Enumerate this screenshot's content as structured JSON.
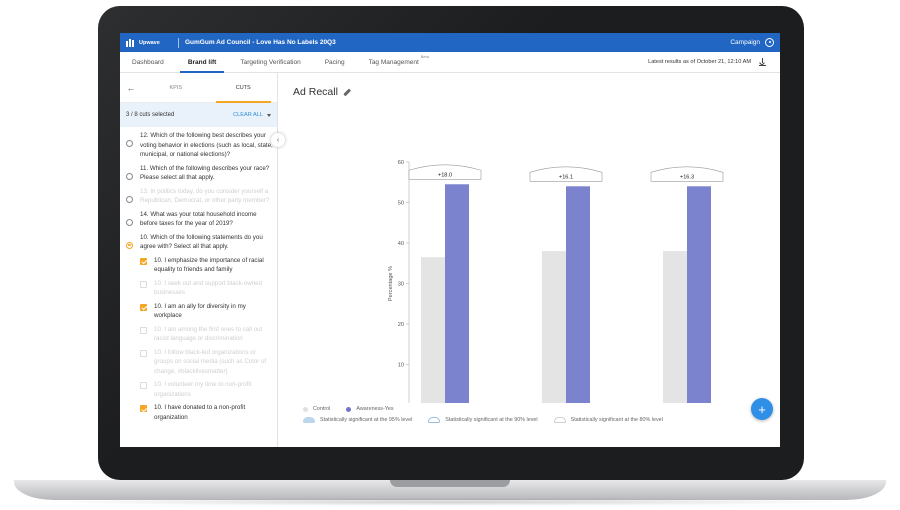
{
  "app": {
    "brand_name": "Upwave",
    "campaign_title": "GumGum Ad Council - Love Has No Labels 20Q3",
    "campaign_menu": "Campaign"
  },
  "nav": {
    "tabs": [
      {
        "label": "Dashboard"
      },
      {
        "label": "Brand lift"
      },
      {
        "label": "Targeting Verification"
      },
      {
        "label": "Pacing"
      },
      {
        "label": "Tag Management"
      }
    ],
    "beta_label": "Beta",
    "latest_results": "Latest results as of October 21, 12:10 AM"
  },
  "sidebar": {
    "tabs": [
      {
        "label": "KPIS"
      },
      {
        "label": "CUTS"
      }
    ],
    "cuts_selected": "3 / 8 cuts selected",
    "clear_all": "CLEAR ALL",
    "items": [
      {
        "text": "12. Which of the following best describes your voting behavior in elections (such as local, state, municipal, or national elections)?",
        "kind": "radio",
        "checked": false,
        "muted": false
      },
      {
        "text": "11. Which of the following describes your race? Please select all that apply.",
        "kind": "radio",
        "checked": false,
        "muted": false
      },
      {
        "text": "13. In politics today, do you consider yourself a Republican, Democrat, or other party member?",
        "kind": "radio",
        "checked": false,
        "muted": true
      },
      {
        "text": "14. What was your total household income before taxes for the year of 2019?",
        "kind": "radio",
        "checked": false,
        "muted": false
      },
      {
        "text": "10. Which of the following statements do you agree with? Select all that apply.",
        "kind": "radio",
        "checked": true,
        "muted": false
      },
      {
        "text": "10. I emphasize the importance of racial equality to friends and family",
        "kind": "checkbox",
        "checked": true,
        "muted": false
      },
      {
        "text": "10. I seek out and support black-owned businesses",
        "kind": "checkbox",
        "checked": false,
        "muted": true
      },
      {
        "text": "10. I am an ally for diversity in my workplace",
        "kind": "checkbox",
        "checked": true,
        "muted": false
      },
      {
        "text": "10. I am among the first ones to call out racist language or discrimination",
        "kind": "checkbox",
        "checked": false,
        "muted": true
      },
      {
        "text": "10. I follow black-led organizations or groups on social media (such as Color of change, #blacklivesmatter)",
        "kind": "checkbox",
        "checked": false,
        "muted": true
      },
      {
        "text": "10. I volunteer my time to non-profit organizations",
        "kind": "checkbox",
        "checked": false,
        "muted": true
      },
      {
        "text": "10. I have donated to a non-profit organization",
        "kind": "checkbox",
        "checked": true,
        "muted": false
      }
    ]
  },
  "main": {
    "title": "Ad Recall"
  },
  "chart_data": {
    "type": "bar",
    "ylabel": "Percentage %",
    "xlabel": "10. Which of the following statements do you agree with? Select all that apply.",
    "ylim": [
      0,
      60
    ],
    "yticks": [
      0,
      10,
      20,
      30,
      40,
      50,
      60
    ],
    "categories": [
      "10. I emphasize  the importance of racial equality to friends and family",
      "10. I am an ally for diversity in my workplace",
      "10. I have donated to a non-profit organization"
    ],
    "series": [
      {
        "name": "Control",
        "color": "#e4e4e4",
        "values": [
          36.5,
          38,
          38
        ]
      },
      {
        "name": "Awareness-Yes",
        "color": "#7b83cf",
        "values": [
          54.5,
          54,
          54
        ]
      }
    ],
    "lift_labels": [
      "+18.0",
      "+16.1",
      "+16.3"
    ],
    "significance_legend": [
      "Statistically significant at the 95% level",
      "Statistically significant at the 90% level",
      "Statistically significant at the 80% level"
    ]
  },
  "colors": {
    "brand_blue": "#2266c4",
    "accent_orange": "#f5a623",
    "link_blue": "#2f8fd6"
  }
}
